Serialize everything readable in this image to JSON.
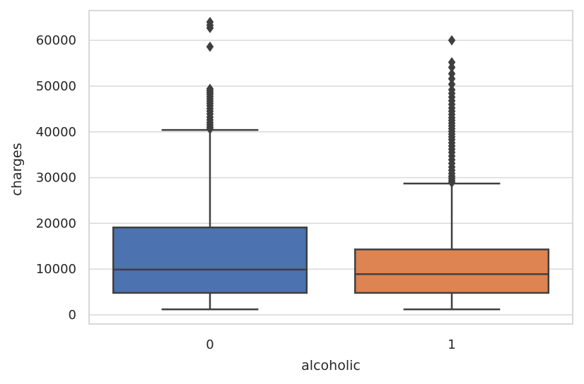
{
  "chart_data": {
    "type": "boxplot",
    "title": "",
    "xlabel": "alcoholic",
    "ylabel": "charges",
    "ylim": [
      -2000,
      66500
    ],
    "yticks": [
      0,
      10000,
      20000,
      30000,
      40000,
      50000,
      60000
    ],
    "ytick_labels": [
      "0",
      "10000",
      "20000",
      "30000",
      "40000",
      "50000",
      "60000"
    ],
    "grid": true,
    "categories": [
      "0",
      "1"
    ],
    "boxes": [
      {
        "name": "0",
        "color": "#4c72b0",
        "whisker_low": 1200,
        "q1": 4800,
        "median": 9900,
        "q3": 19100,
        "whisker_high": 40400,
        "outliers": [
          40600,
          41000,
          41500,
          42000,
          42600,
          43200,
          43900,
          44500,
          45100,
          45700,
          46200,
          46700,
          47200,
          47700,
          48200,
          48600,
          49000,
          49400,
          58600,
          62700,
          63300,
          64000
        ]
      },
      {
        "name": "1",
        "color": "#dd8452",
        "whisker_low": 1200,
        "q1": 4800,
        "median": 8900,
        "q3": 14300,
        "whisker_high": 28700,
        "outliers": [
          28900,
          29300,
          29800,
          30300,
          30900,
          31600,
          32300,
          33100,
          33900,
          34700,
          35500,
          36200,
          36900,
          37600,
          38300,
          38900,
          39500,
          40100,
          40700,
          41300,
          41900,
          42500,
          43100,
          43800,
          44500,
          45200,
          46000,
          46800,
          47600,
          48400,
          49200,
          50400,
          51600,
          52700,
          54100,
          55200,
          60000
        ]
      }
    ]
  }
}
